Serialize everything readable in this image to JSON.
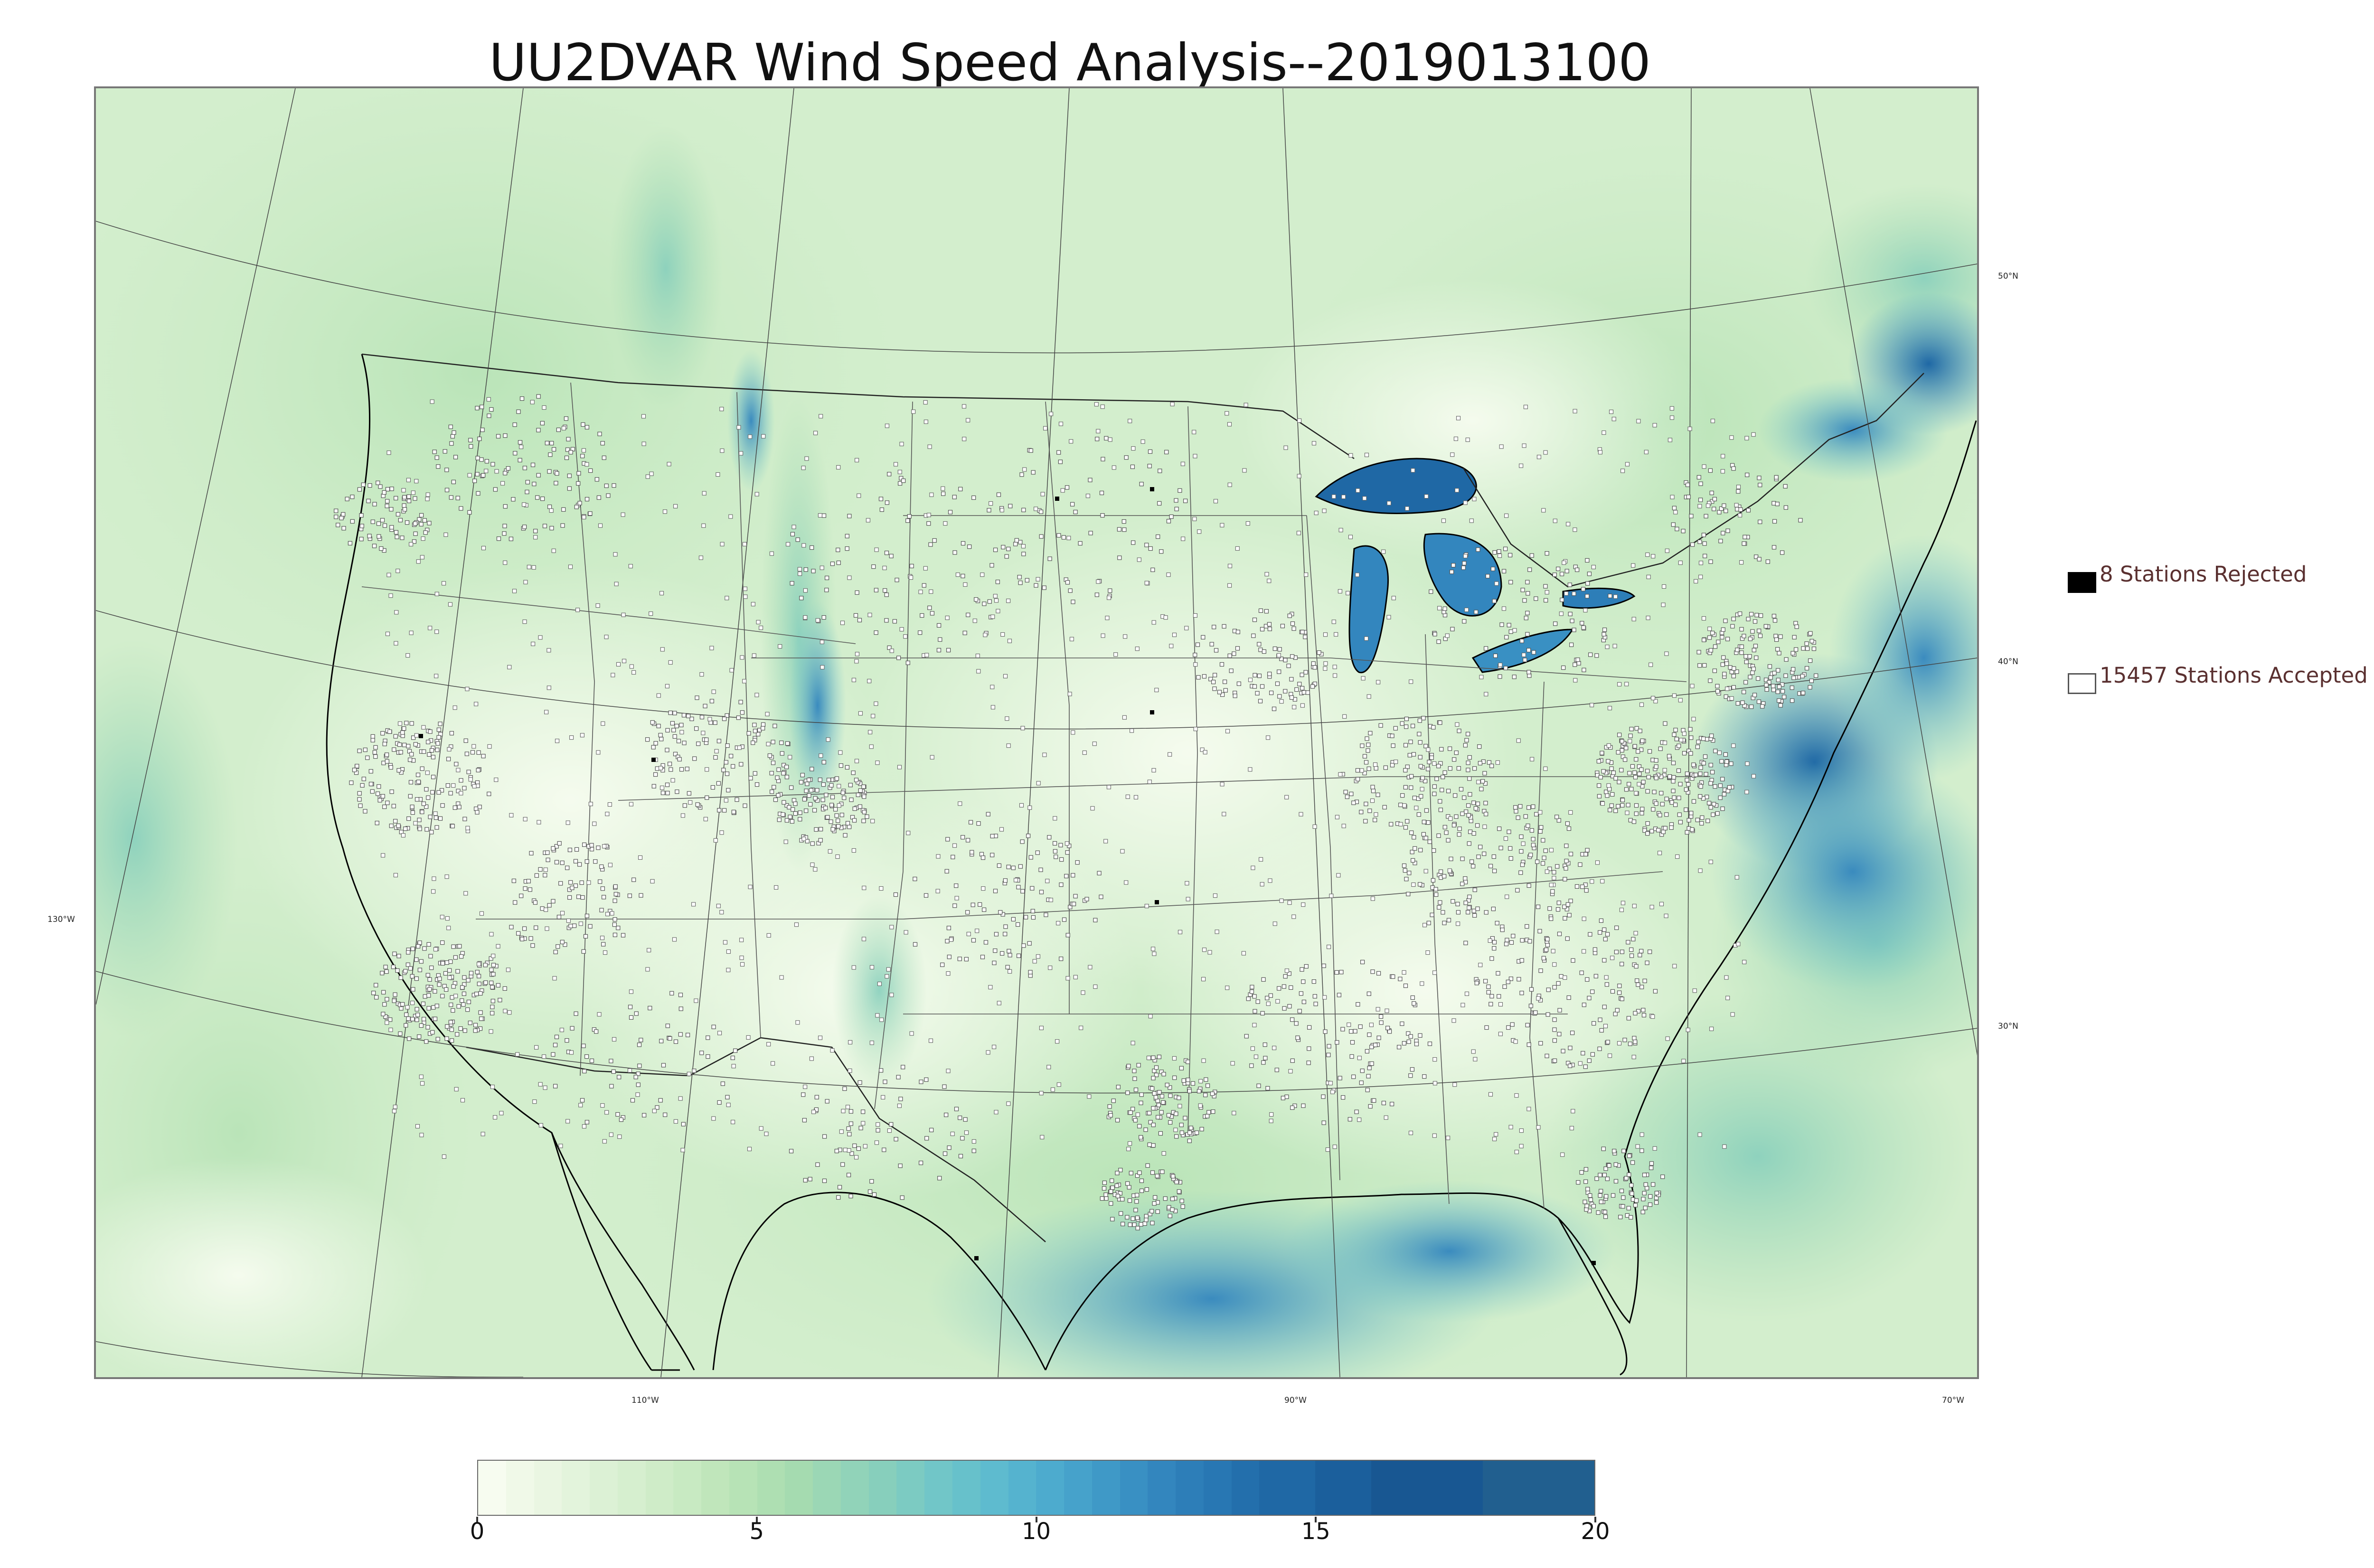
{
  "title": "UU2DVAR Wind Speed Analysis--2019013100",
  "map": {
    "projection": "lambert-conformal",
    "field": "wind speed",
    "coastline_color": "#000000",
    "state_border_color": "#555555",
    "land_base_color": "#e2f4dc",
    "station_accepted_marker": "open-square",
    "station_rejected_marker": "filled-square",
    "high_wind_regions": [
      "Lake Superior",
      "Lake Michigan",
      "Lake Huron",
      "Lake Erie",
      "Lake Ontario",
      "Gulf of Maine",
      "Mid-Atlantic coast offshore",
      "Gulf of Mexico",
      "Gulf of St. Lawrence",
      "Rocky Mountains (Colorado)",
      "Northern Rockies"
    ]
  },
  "graticule": {
    "latitudes": [
      {
        "label": "50°N"
      },
      {
        "label": "40°N"
      },
      {
        "label": "30°N"
      }
    ],
    "longitudes": [
      {
        "label": "130°W"
      },
      {
        "label": "110°W"
      },
      {
        "label": "90°W"
      },
      {
        "label": "70°W"
      }
    ]
  },
  "legend": {
    "rejected": {
      "label": "8 Stations Rejected",
      "count": 8,
      "color": "#000000"
    },
    "accepted": {
      "label": "15457 Stations Accepted",
      "count": 15457,
      "color": "#ffffff"
    }
  },
  "colorbar": {
    "min": 0,
    "max": 20,
    "ticks": [
      "0",
      "5",
      "10",
      "15",
      "20"
    ],
    "levels": [
      0,
      0.5,
      1,
      1.5,
      2,
      2.5,
      3,
      3.5,
      4,
      4.5,
      5,
      5.5,
      6,
      6.5,
      7,
      7.5,
      8,
      8.5,
      9,
      9.5,
      10,
      10.5,
      11,
      11.5,
      12,
      12.5,
      13,
      13.5,
      14,
      15,
      16,
      18,
      20
    ],
    "colors": [
      "#f7fcf0",
      "#f0f9e8",
      "#eaf6e2",
      "#e3f4dc",
      "#dcf1d5",
      "#d6efcf",
      "#cfecc8",
      "#c8eac2",
      "#c0e6bb",
      "#b7e3b6",
      "#aedfb2",
      "#a5dbb0",
      "#9bd7b5",
      "#91d3b9",
      "#87cfbc",
      "#7ccbc2",
      "#71c6c8",
      "#67c1cb",
      "#5ebbcf",
      "#55b3cf",
      "#4dabce",
      "#46a2cb",
      "#3f99c7",
      "#3990c3",
      "#3386be",
      "#2d7eb8",
      "#2877b3",
      "#236fac",
      "#1f68a5",
      "#1b5f9c",
      "#185792",
      "#215f8f"
    ]
  }
}
